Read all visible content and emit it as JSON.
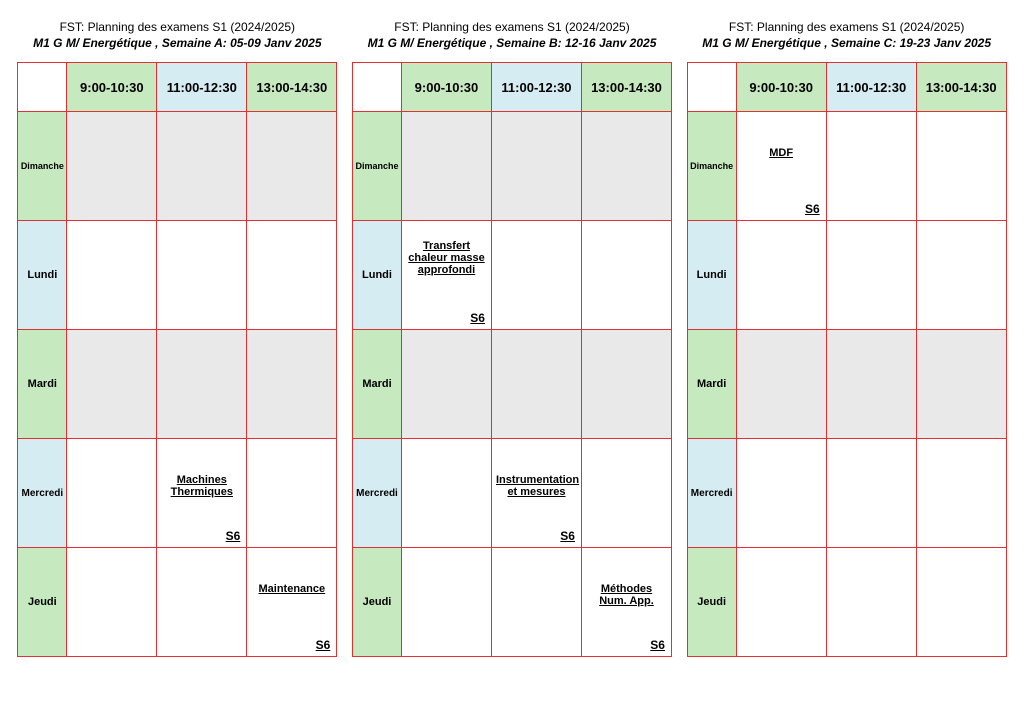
{
  "global_title": "FST: Planning des examens S1 (2024/2025)",
  "program": "M1 G M/ Energétique",
  "time_slots": [
    "9:00-10:30",
    "11:00-12:30",
    "13:00-14:30"
  ],
  "day_labels": [
    "Dimanche",
    "Lundi",
    "Mardi",
    "Mercredi",
    "Jeudi"
  ],
  "room_label": "S6",
  "colors": {
    "border": "#e03030",
    "green": "#c7e9c0",
    "blue": "#d6ecf3",
    "empty": "#e9e9e9",
    "filled": "#ffffff"
  },
  "weeks": [
    {
      "subtitle": "Semaine A: 05-09 Janv 2025",
      "slots": [
        [
          null,
          null,
          null
        ],
        [
          null,
          null,
          null
        ],
        [
          null,
          null,
          null
        ],
        [
          null,
          {
            "course": "Machines Thermiques",
            "room": "S6"
          },
          null
        ],
        [
          null,
          null,
          {
            "course": "Maintenance",
            "room": "S6"
          }
        ]
      ]
    },
    {
      "subtitle": "Semaine B: 12-16 Janv 2025",
      "slots": [
        [
          null,
          null,
          null
        ],
        [
          {
            "course": "Transfert chaleur masse approfondi",
            "room": "S6"
          },
          null,
          null
        ],
        [
          null,
          null,
          null
        ],
        [
          null,
          {
            "course": "Instrumentation et mesures",
            "room": "S6"
          },
          null
        ],
        [
          null,
          null,
          {
            "course": "Méthodes Num. App.",
            "room": "S6"
          }
        ]
      ]
    },
    {
      "subtitle": "Semaine C: 19-23 Janv 2025",
      "slots": [
        [
          {
            "course": "MDF",
            "room": "S6"
          },
          null,
          null
        ],
        [
          null,
          null,
          null
        ],
        [
          null,
          null,
          null
        ],
        [
          null,
          null,
          null
        ],
        [
          null,
          null,
          null
        ]
      ]
    }
  ]
}
